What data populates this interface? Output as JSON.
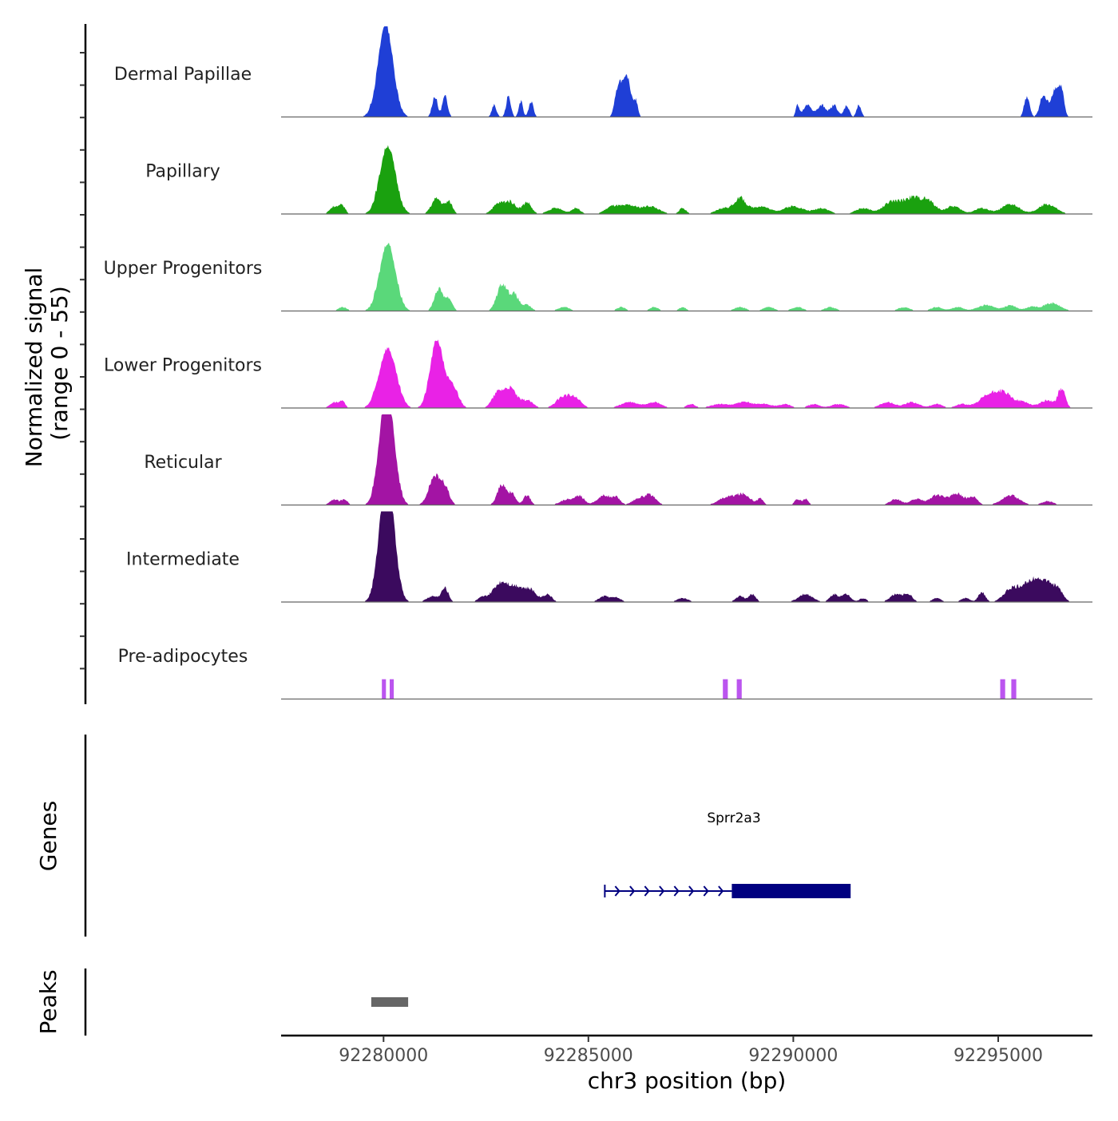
{
  "chart_data": {
    "type": "area",
    "title": "",
    "ylabel": "Normalized signal",
    "ylabel_sub": "(range 0 - 55)",
    "xlabel": "chr3 position (bp)",
    "ylim": [
      0,
      55
    ],
    "xlim": [
      92277500,
      92297300
    ],
    "xticks": [
      92280000,
      92285000,
      92290000,
      92295000
    ],
    "xtick_labels": [
      "92280000",
      "92285000",
      "92290000",
      "92295000"
    ],
    "tracks": [
      {
        "name": "Dermal Papillae",
        "color": "#1f3fd6",
        "peaks": [
          [
            92280050,
            55,
            250
          ],
          [
            92281250,
            11,
            90
          ],
          [
            92281500,
            11,
            90
          ],
          [
            92282700,
            6,
            80
          ],
          [
            92283050,
            11,
            80
          ],
          [
            92283350,
            8,
            70
          ],
          [
            92283600,
            8,
            80
          ],
          [
            92285750,
            19,
            120
          ],
          [
            92285950,
            22,
            120
          ],
          [
            92286150,
            8,
            80
          ],
          [
            92290100,
            6,
            60
          ],
          [
            92290350,
            6,
            150
          ],
          [
            92290700,
            6,
            150
          ],
          [
            92291000,
            6,
            120
          ],
          [
            92291300,
            6,
            90
          ],
          [
            92291600,
            6,
            80
          ],
          [
            92295700,
            11,
            90
          ],
          [
            92296100,
            11,
            120
          ],
          [
            92296400,
            16,
            150
          ],
          [
            92296550,
            11,
            80
          ]
        ]
      },
      {
        "name": "Papillary",
        "color": "#1aa10f",
        "peaks": [
          [
            92280100,
            40,
            260
          ],
          [
            92278800,
            4,
            150
          ],
          [
            92279000,
            4,
            100
          ],
          [
            92281300,
            8,
            180
          ],
          [
            92281600,
            6,
            120
          ],
          [
            92282800,
            5,
            200
          ],
          [
            92283100,
            6,
            200
          ],
          [
            92283500,
            6,
            150
          ],
          [
            92284200,
            3,
            250
          ],
          [
            92284700,
            3,
            150
          ],
          [
            92285600,
            4,
            250
          ],
          [
            92286000,
            4,
            250
          ],
          [
            92286500,
            4,
            300
          ],
          [
            92287300,
            3,
            120
          ],
          [
            92288300,
            3,
            250
          ],
          [
            92288700,
            8,
            200
          ],
          [
            92289200,
            4,
            300
          ],
          [
            92290000,
            4,
            350
          ],
          [
            92290700,
            3,
            250
          ],
          [
            92291700,
            3,
            250
          ],
          [
            92292400,
            6,
            300
          ],
          [
            92292900,
            8,
            300
          ],
          [
            92293300,
            6,
            250
          ],
          [
            92293900,
            4,
            250
          ],
          [
            92294600,
            3,
            250
          ],
          [
            92295300,
            5,
            300
          ],
          [
            92296200,
            5,
            300
          ]
        ]
      },
      {
        "name": "Upper Progenitors",
        "color": "#5ad87a",
        "peaks": [
          [
            92280100,
            40,
            260
          ],
          [
            92279000,
            2,
            150
          ],
          [
            92281350,
            12,
            150
          ],
          [
            92281600,
            6,
            120
          ],
          [
            92282900,
            15,
            180
          ],
          [
            92283200,
            8,
            150
          ],
          [
            92283500,
            3,
            150
          ],
          [
            92284400,
            2,
            200
          ],
          [
            92285800,
            2,
            150
          ],
          [
            92286600,
            2,
            150
          ],
          [
            92287300,
            2,
            120
          ],
          [
            92288700,
            2,
            200
          ],
          [
            92289400,
            2,
            200
          ],
          [
            92290100,
            2,
            200
          ],
          [
            92290900,
            2,
            200
          ],
          [
            92292700,
            2,
            200
          ],
          [
            92293500,
            2,
            200
          ],
          [
            92294000,
            2,
            200
          ],
          [
            92294700,
            3,
            300
          ],
          [
            92295300,
            3,
            200
          ],
          [
            92295800,
            2,
            200
          ],
          [
            92296300,
            4,
            300
          ]
        ]
      },
      {
        "name": "Lower Progenitors",
        "color": "#e922e6",
        "peaks": [
          [
            92280100,
            35,
            280
          ],
          [
            92278800,
            3,
            150
          ],
          [
            92279000,
            3,
            100
          ],
          [
            92281300,
            40,
            220
          ],
          [
            92281650,
            10,
            180
          ],
          [
            92281800,
            3,
            150
          ],
          [
            92282800,
            8,
            200
          ],
          [
            92283100,
            10,
            200
          ],
          [
            92283500,
            4,
            200
          ],
          [
            92284400,
            6,
            250
          ],
          [
            92284700,
            4,
            200
          ],
          [
            92286000,
            3,
            300
          ],
          [
            92286600,
            3,
            250
          ],
          [
            92287500,
            2,
            150
          ],
          [
            92288200,
            2,
            300
          ],
          [
            92288800,
            3,
            300
          ],
          [
            92289300,
            2,
            250
          ],
          [
            92289800,
            2,
            200
          ],
          [
            92290500,
            2,
            200
          ],
          [
            92291100,
            2,
            250
          ],
          [
            92292300,
            3,
            250
          ],
          [
            92292900,
            3,
            250
          ],
          [
            92293500,
            2,
            200
          ],
          [
            92294100,
            2,
            200
          ],
          [
            92294700,
            5,
            300
          ],
          [
            92295100,
            8,
            300
          ],
          [
            92295600,
            3,
            250
          ],
          [
            92296200,
            4,
            250
          ],
          [
            92296550,
            10,
            120
          ]
        ]
      },
      {
        "name": "Reticular",
        "color": "#a314a4",
        "peaks": [
          [
            92280080,
            70,
            240
          ],
          [
            92278800,
            3,
            150
          ],
          [
            92279050,
            3,
            100
          ],
          [
            92281250,
            16,
            200
          ],
          [
            92281500,
            8,
            150
          ],
          [
            92282900,
            11,
            160
          ],
          [
            92283150,
            5,
            120
          ],
          [
            92283500,
            5,
            120
          ],
          [
            92284500,
            3,
            250
          ],
          [
            92284800,
            4,
            150
          ],
          [
            92285400,
            5,
            250
          ],
          [
            92285700,
            3,
            120
          ],
          [
            92286200,
            3,
            200
          ],
          [
            92286500,
            5,
            200
          ],
          [
            92288400,
            4,
            300
          ],
          [
            92288800,
            5,
            250
          ],
          [
            92289200,
            3,
            100
          ],
          [
            92290100,
            3,
            100
          ],
          [
            92290300,
            3,
            100
          ],
          [
            92292500,
            3,
            200
          ],
          [
            92293000,
            3,
            200
          ],
          [
            92293500,
            5,
            250
          ],
          [
            92294000,
            6,
            250
          ],
          [
            92294400,
            4,
            150
          ],
          [
            92295300,
            5,
            300
          ],
          [
            92296200,
            2,
            200
          ]
        ]
      },
      {
        "name": "Intermediate",
        "color": "#3b0a5e",
        "peaks": [
          [
            92280080,
            80,
            240
          ],
          [
            92281200,
            3,
            200
          ],
          [
            92281500,
            7,
            120
          ],
          [
            92282400,
            2,
            150
          ],
          [
            92282900,
            11,
            300
          ],
          [
            92283300,
            6,
            200
          ],
          [
            92283600,
            6,
            200
          ],
          [
            92284000,
            4,
            150
          ],
          [
            92285400,
            3,
            200
          ],
          [
            92285700,
            2,
            150
          ],
          [
            92287300,
            2,
            200
          ],
          [
            92288700,
            3,
            150
          ],
          [
            92289000,
            4,
            120
          ],
          [
            92290300,
            4,
            250
          ],
          [
            92291000,
            4,
            150
          ],
          [
            92291300,
            4,
            150
          ],
          [
            92291700,
            2,
            120
          ],
          [
            92292500,
            4,
            200
          ],
          [
            92292800,
            4,
            150
          ],
          [
            92293500,
            2,
            150
          ],
          [
            92294200,
            2,
            150
          ],
          [
            92294600,
            5,
            120
          ],
          [
            92295300,
            6,
            250
          ],
          [
            92295700,
            7,
            300
          ],
          [
            92296000,
            9,
            300
          ],
          [
            92296300,
            6,
            250
          ],
          [
            92296500,
            3,
            150
          ]
        ]
      },
      {
        "name": "Pre-adipocytes",
        "color": "#bb55ef",
        "blocks": [
          [
            92279960,
            92280060,
            12
          ],
          [
            92280150,
            92280250,
            12
          ],
          [
            92288280,
            92288400,
            12
          ],
          [
            92288620,
            92288740,
            12
          ],
          [
            92295050,
            92295170,
            12
          ],
          [
            92295320,
            92295440,
            12
          ]
        ]
      }
    ],
    "gene": {
      "name": "Sprr2a3",
      "start": 92285400,
      "end": 92291400,
      "thick_start": 92288500,
      "thick_end": 92291400,
      "strand": "+",
      "color": "#000080"
    },
    "peaks_track": {
      "label": "Peaks",
      "regions": [
        [
          92279700,
          92280600
        ]
      ],
      "color": "#666666"
    },
    "genes_label": "Genes"
  }
}
